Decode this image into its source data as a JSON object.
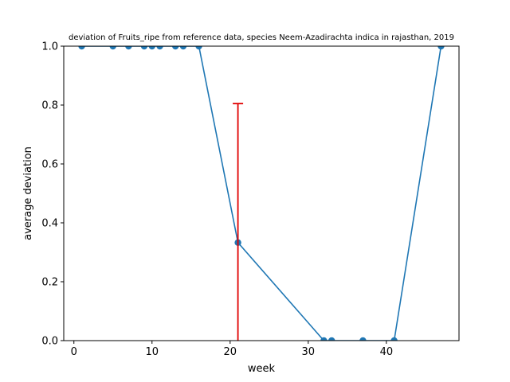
{
  "chart_data": {
    "type": "line",
    "title": "deviation of Fruits_ripe from reference data, species Neem-Azadirachta indica in rajasthan, 2019",
    "xlabel": "week",
    "ylabel": "average deviation",
    "xlim": [
      -1.3,
      49.3
    ],
    "ylim": [
      0.0,
      1.0
    ],
    "xticks": [
      0,
      10,
      20,
      30,
      40
    ],
    "yticks": [
      0.0,
      0.2,
      0.4,
      0.6,
      0.8,
      1.0
    ],
    "xtick_labels": [
      "0",
      "10",
      "20",
      "30",
      "40"
    ],
    "ytick_labels": [
      "0.0",
      "0.2",
      "0.4",
      "0.6",
      "0.8",
      "1.0"
    ],
    "grid": false,
    "series": [
      {
        "color": "#1f77b4",
        "x": [
          1,
          5,
          7,
          9,
          10,
          11,
          13,
          14,
          16,
          21,
          32,
          33,
          37,
          41,
          47
        ],
        "y": [
          1.0,
          1.0,
          1.0,
          1.0,
          1.0,
          1.0,
          1.0,
          1.0,
          1.0,
          0.333,
          0.0,
          0.0,
          0.0,
          0.0,
          1.0
        ]
      }
    ],
    "error_bars": [
      {
        "x": 21,
        "y_low": 0.0,
        "y_high": 0.805,
        "color": "#e00000"
      }
    ]
  }
}
